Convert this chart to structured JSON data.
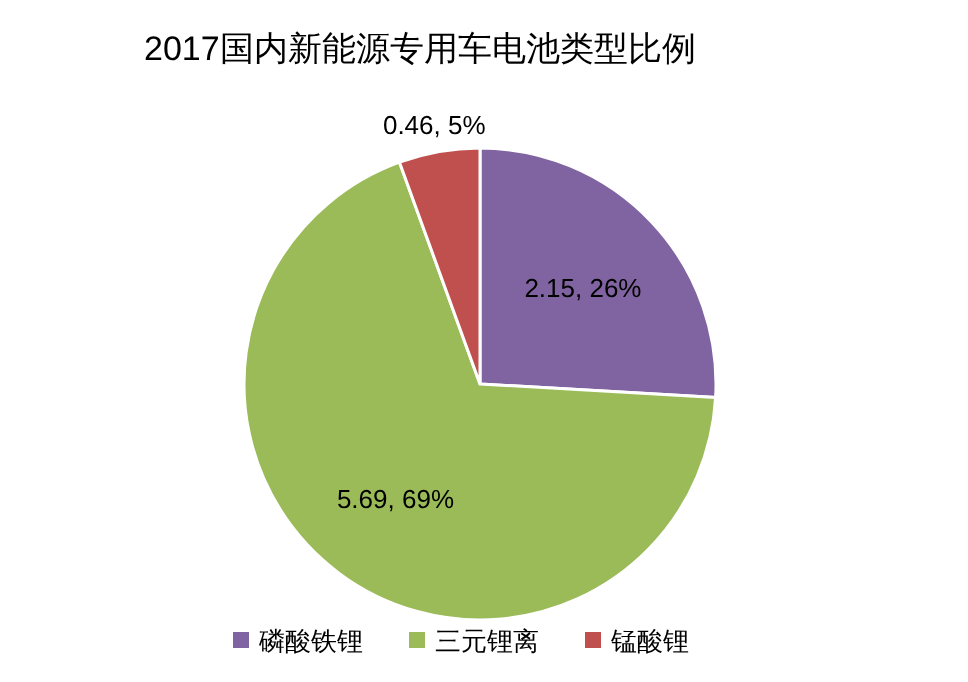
{
  "chart_data": {
    "type": "pie",
    "title": "2017国内新能源专用车电池类型比例",
    "categories": [
      "磷酸铁锂",
      "三元锂离",
      "锰酸锂"
    ],
    "values": [
      2.15,
      5.69,
      0.46
    ],
    "colors": [
      "#8064a2",
      "#9bbb59",
      "#c0504d"
    ],
    "value_labels": [
      "2.15, 26%",
      "5.69, 69%",
      "0.46, 5%"
    ],
    "legend": "bottom"
  }
}
